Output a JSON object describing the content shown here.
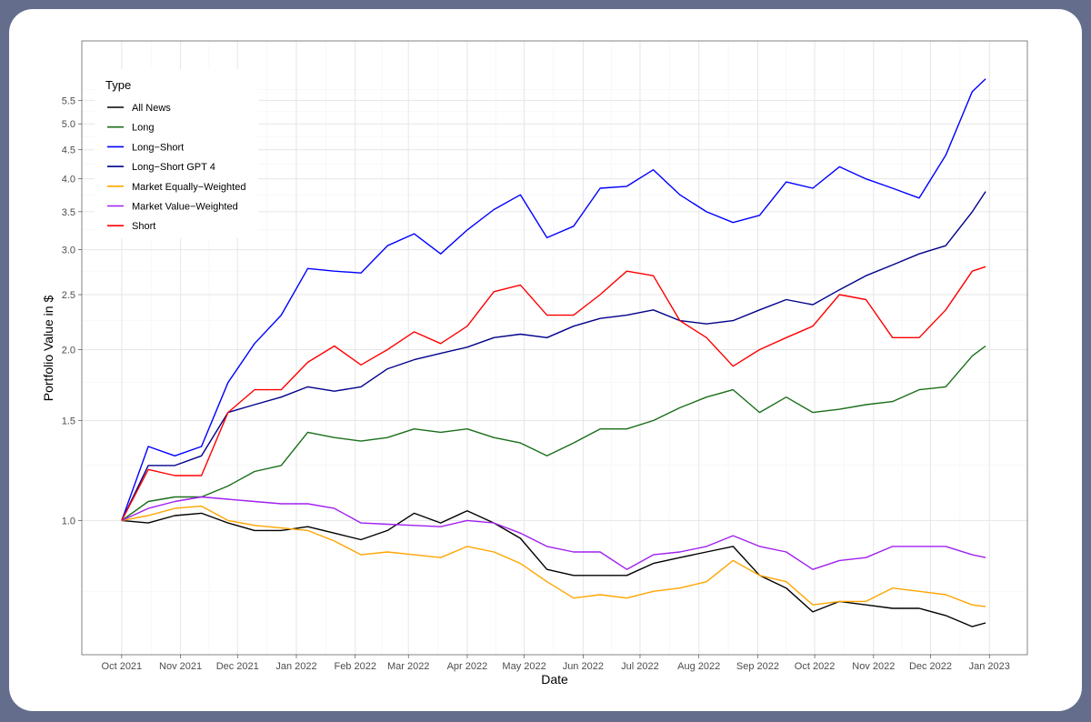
{
  "chart_data": {
    "type": "line",
    "title": "",
    "xlabel": "Date",
    "ylabel": "Portfolio Value in $",
    "y_scale": "log",
    "ylim": [
      0.58,
      7.0
    ],
    "xlim": [
      "2021-09-10",
      "2023-01-21"
    ],
    "grid": true,
    "legend": {
      "title": "Type",
      "placement": "top-left"
    },
    "x_ticks": [
      "Oct 2021",
      "Nov 2021",
      "Dec 2021",
      "Jan 2022",
      "Feb 2022",
      "Mar 2022",
      "Apr 2022",
      "May 2022",
      "Jun 2022",
      "Jul 2022",
      "Aug 2022",
      "Sep 2022",
      "Oct 2022",
      "Nov 2022",
      "Dec 2022",
      "Jan 2023"
    ],
    "x_tick_dates": [
      "2021-10-01",
      "2021-11-01",
      "2021-12-01",
      "2022-01-01",
      "2022-02-01",
      "2022-03-01",
      "2022-04-01",
      "2022-05-01",
      "2022-06-01",
      "2022-07-01",
      "2022-08-01",
      "2022-09-01",
      "2022-10-01",
      "2022-11-01",
      "2022-12-01",
      "2023-01-01"
    ],
    "y_ticks": [
      "1.0",
      "1.5",
      "2.0",
      "2.5",
      "3.0",
      "3.5",
      "4.0",
      "4.5",
      "5.0",
      "5.5"
    ],
    "x": [
      "2021-10-01",
      "2021-10-15",
      "2021-10-29",
      "2021-11-12",
      "2021-11-26",
      "2021-12-10",
      "2021-12-24",
      "2022-01-07",
      "2022-01-21",
      "2022-02-04",
      "2022-02-18",
      "2022-03-04",
      "2022-03-18",
      "2022-04-01",
      "2022-04-15",
      "2022-04-29",
      "2022-05-13",
      "2022-05-27",
      "2022-06-10",
      "2022-06-24",
      "2022-07-08",
      "2022-07-22",
      "2022-08-05",
      "2022-08-19",
      "2022-09-02",
      "2022-09-16",
      "2022-09-30",
      "2022-10-14",
      "2022-10-28",
      "2022-11-11",
      "2022-11-25",
      "2022-12-09",
      "2022-12-23",
      "2022-12-30"
    ],
    "series": [
      {
        "name": "All News",
        "color": "#000000",
        "values": [
          1.0,
          0.99,
          1.02,
          1.03,
          0.99,
          0.96,
          0.96,
          0.975,
          0.95,
          0.925,
          0.96,
          1.03,
          0.99,
          1.04,
          0.99,
          0.93,
          0.82,
          0.8,
          0.8,
          0.8,
          0.84,
          0.86,
          0.88,
          0.9,
          0.8,
          0.76,
          0.69,
          0.72,
          0.71,
          0.7,
          0.7,
          0.68,
          0.65,
          0.66
        ]
      },
      {
        "name": "Long",
        "color": "#1a6e1a",
        "values": [
          1.0,
          1.08,
          1.1,
          1.1,
          1.15,
          1.22,
          1.25,
          1.43,
          1.4,
          1.38,
          1.4,
          1.45,
          1.43,
          1.45,
          1.4,
          1.37,
          1.3,
          1.37,
          1.45,
          1.45,
          1.5,
          1.58,
          1.65,
          1.7,
          1.55,
          1.65,
          1.55,
          1.57,
          1.6,
          1.62,
          1.7,
          1.72,
          1.95,
          2.03
        ]
      },
      {
        "name": "Long−Short",
        "color": "#0000ff",
        "values": [
          1.0,
          1.35,
          1.3,
          1.35,
          1.75,
          2.05,
          2.3,
          2.78,
          2.75,
          2.73,
          3.05,
          3.2,
          2.95,
          3.25,
          3.53,
          3.75,
          3.15,
          3.3,
          3.85,
          3.88,
          4.15,
          3.75,
          3.5,
          3.35,
          3.45,
          3.95,
          3.85,
          4.2,
          4.0,
          3.85,
          3.7,
          4.4,
          5.7,
          6.0
        ]
      },
      {
        "name": "Long−Short GPT 4",
        "color": "#00008b",
        "values": [
          1.0,
          1.25,
          1.25,
          1.3,
          1.55,
          1.6,
          1.65,
          1.72,
          1.69,
          1.72,
          1.85,
          1.92,
          1.97,
          2.02,
          2.1,
          2.13,
          2.1,
          2.2,
          2.27,
          2.3,
          2.35,
          2.25,
          2.22,
          2.25,
          2.35,
          2.45,
          2.4,
          2.55,
          2.7,
          2.82,
          2.95,
          3.05,
          3.5,
          3.8
        ]
      },
      {
        "name": "Market Equally−Weighted",
        "color": "#ffa500",
        "values": [
          1.0,
          1.02,
          1.05,
          1.06,
          1.0,
          0.98,
          0.97,
          0.96,
          0.92,
          0.87,
          0.88,
          0.87,
          0.86,
          0.9,
          0.88,
          0.84,
          0.78,
          0.73,
          0.74,
          0.73,
          0.75,
          0.76,
          0.78,
          0.85,
          0.8,
          0.78,
          0.71,
          0.72,
          0.72,
          0.76,
          0.75,
          0.74,
          0.71,
          0.705
        ]
      },
      {
        "name": "Market Value−Weighted",
        "color": "#a020f0",
        "values": [
          1.0,
          1.05,
          1.08,
          1.1,
          1.09,
          1.08,
          1.07,
          1.07,
          1.05,
          0.99,
          0.985,
          0.98,
          0.975,
          1.0,
          0.99,
          0.95,
          0.9,
          0.88,
          0.88,
          0.82,
          0.87,
          0.88,
          0.9,
          0.94,
          0.9,
          0.88,
          0.82,
          0.85,
          0.86,
          0.9,
          0.9,
          0.9,
          0.87,
          0.86
        ]
      },
      {
        "name": "Short",
        "color": "#ff0000",
        "values": [
          1.0,
          1.23,
          1.2,
          1.2,
          1.55,
          1.7,
          1.7,
          1.9,
          2.03,
          1.88,
          2.0,
          2.15,
          2.05,
          2.2,
          2.53,
          2.6,
          2.3,
          2.3,
          2.5,
          2.75,
          2.7,
          2.25,
          2.1,
          1.87,
          2.0,
          2.1,
          2.2,
          2.5,
          2.45,
          2.1,
          2.1,
          2.35,
          2.75,
          2.8
        ]
      }
    ]
  }
}
